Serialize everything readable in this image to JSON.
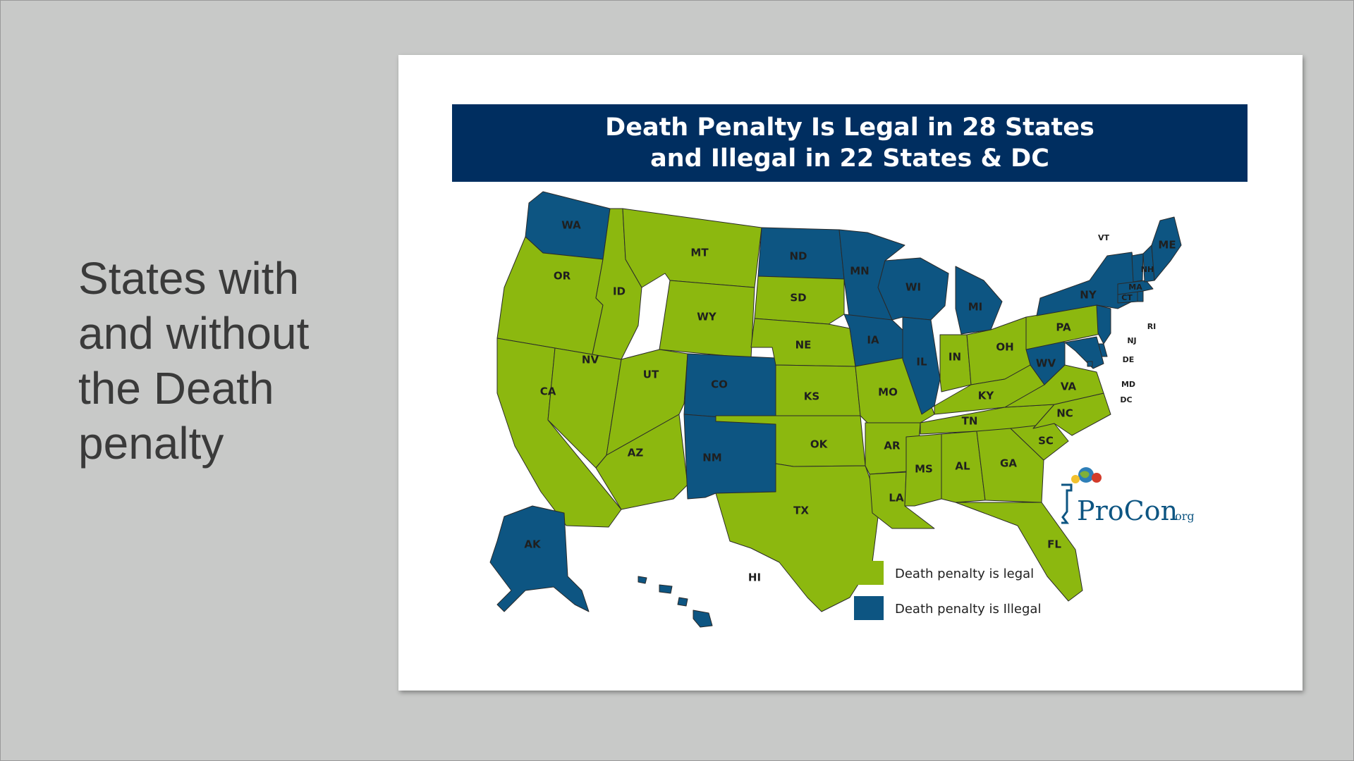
{
  "slide": {
    "lines": [
      "States with",
      "and without",
      "the Death",
      "penalty"
    ]
  },
  "map": {
    "title_line1": "Death Penalty Is Legal in 28 States",
    "title_line2": "and Illegal in 22 States & DC",
    "colors": {
      "legal": "#8cb80f",
      "illegal": "#0d5582",
      "border": "#2a2a2a",
      "banner": "#002e60"
    },
    "legend": {
      "legal": "Death penalty is legal",
      "illegal": "Death penalty is Illegal"
    },
    "logo": {
      "main": "ProCon",
      "suffix": ".org"
    },
    "states": {
      "WA": "illegal",
      "OR": "legal",
      "CA": "legal",
      "NV": "legal",
      "ID": "legal",
      "MT": "legal",
      "WY": "legal",
      "UT": "legal",
      "AZ": "legal",
      "CO": "illegal",
      "NM": "illegal",
      "ND": "illegal",
      "SD": "legal",
      "NE": "legal",
      "KS": "legal",
      "OK": "legal",
      "TX": "legal",
      "MN": "illegal",
      "IA": "illegal",
      "MO": "legal",
      "AR": "legal",
      "LA": "legal",
      "WI": "illegal",
      "IL": "illegal",
      "MI": "illegal",
      "IN": "legal",
      "OH": "legal",
      "KY": "legal",
      "TN": "legal",
      "MS": "legal",
      "AL": "legal",
      "GA": "legal",
      "FL": "legal",
      "SC": "legal",
      "NC": "legal",
      "VA": "legal",
      "WV": "illegal",
      "PA": "legal",
      "NY": "illegal",
      "NJ": "illegal",
      "DE": "illegal",
      "MD": "illegal",
      "DC": "illegal",
      "CT": "illegal",
      "RI": "illegal",
      "MA": "illegal",
      "VT": "illegal",
      "NH": "illegal",
      "ME": "illegal",
      "AK": "illegal",
      "HI": "illegal"
    }
  }
}
